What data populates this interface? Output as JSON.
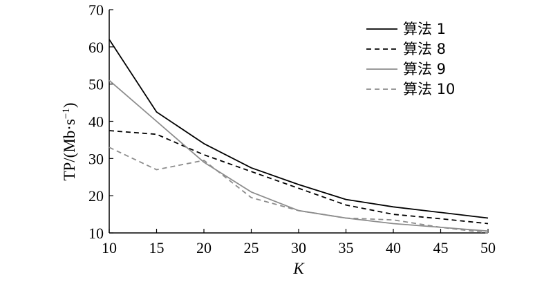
{
  "chart_data": {
    "type": "line",
    "xlabel": "K",
    "ylabel": "TP/(Mb·s⁻¹)",
    "xlim": [
      10,
      50
    ],
    "ylim": [
      10,
      70
    ],
    "xticks": [
      10,
      15,
      20,
      25,
      30,
      35,
      40,
      45,
      50
    ],
    "yticks": [
      10,
      20,
      30,
      40,
      50,
      60,
      70
    ],
    "x": [
      10,
      15,
      20,
      25,
      30,
      35,
      40,
      45,
      50
    ],
    "legend_position": "top-right",
    "grid": false,
    "series": [
      {
        "name": "算法 1",
        "color": "#000000",
        "dash": "solid",
        "values": [
          62,
          42.5,
          34,
          27.5,
          23,
          19,
          17,
          15.5,
          14
        ]
      },
      {
        "name": "算法 8",
        "color": "#000000",
        "dash": "dashed",
        "values": [
          37.5,
          36.5,
          31,
          26.5,
          22,
          17.5,
          15,
          13.8,
          12.5
        ]
      },
      {
        "name": "算法 9",
        "color": "#8c8c8c",
        "dash": "solid",
        "values": [
          51,
          40,
          29,
          21,
          16,
          14,
          12.5,
          11.5,
          10.5
        ]
      },
      {
        "name": "算法 10",
        "color": "#8c8c8c",
        "dash": "dashed",
        "values": [
          33,
          27,
          29.5,
          19.5,
          16,
          14,
          13.5,
          11.5,
          10
        ]
      }
    ]
  }
}
